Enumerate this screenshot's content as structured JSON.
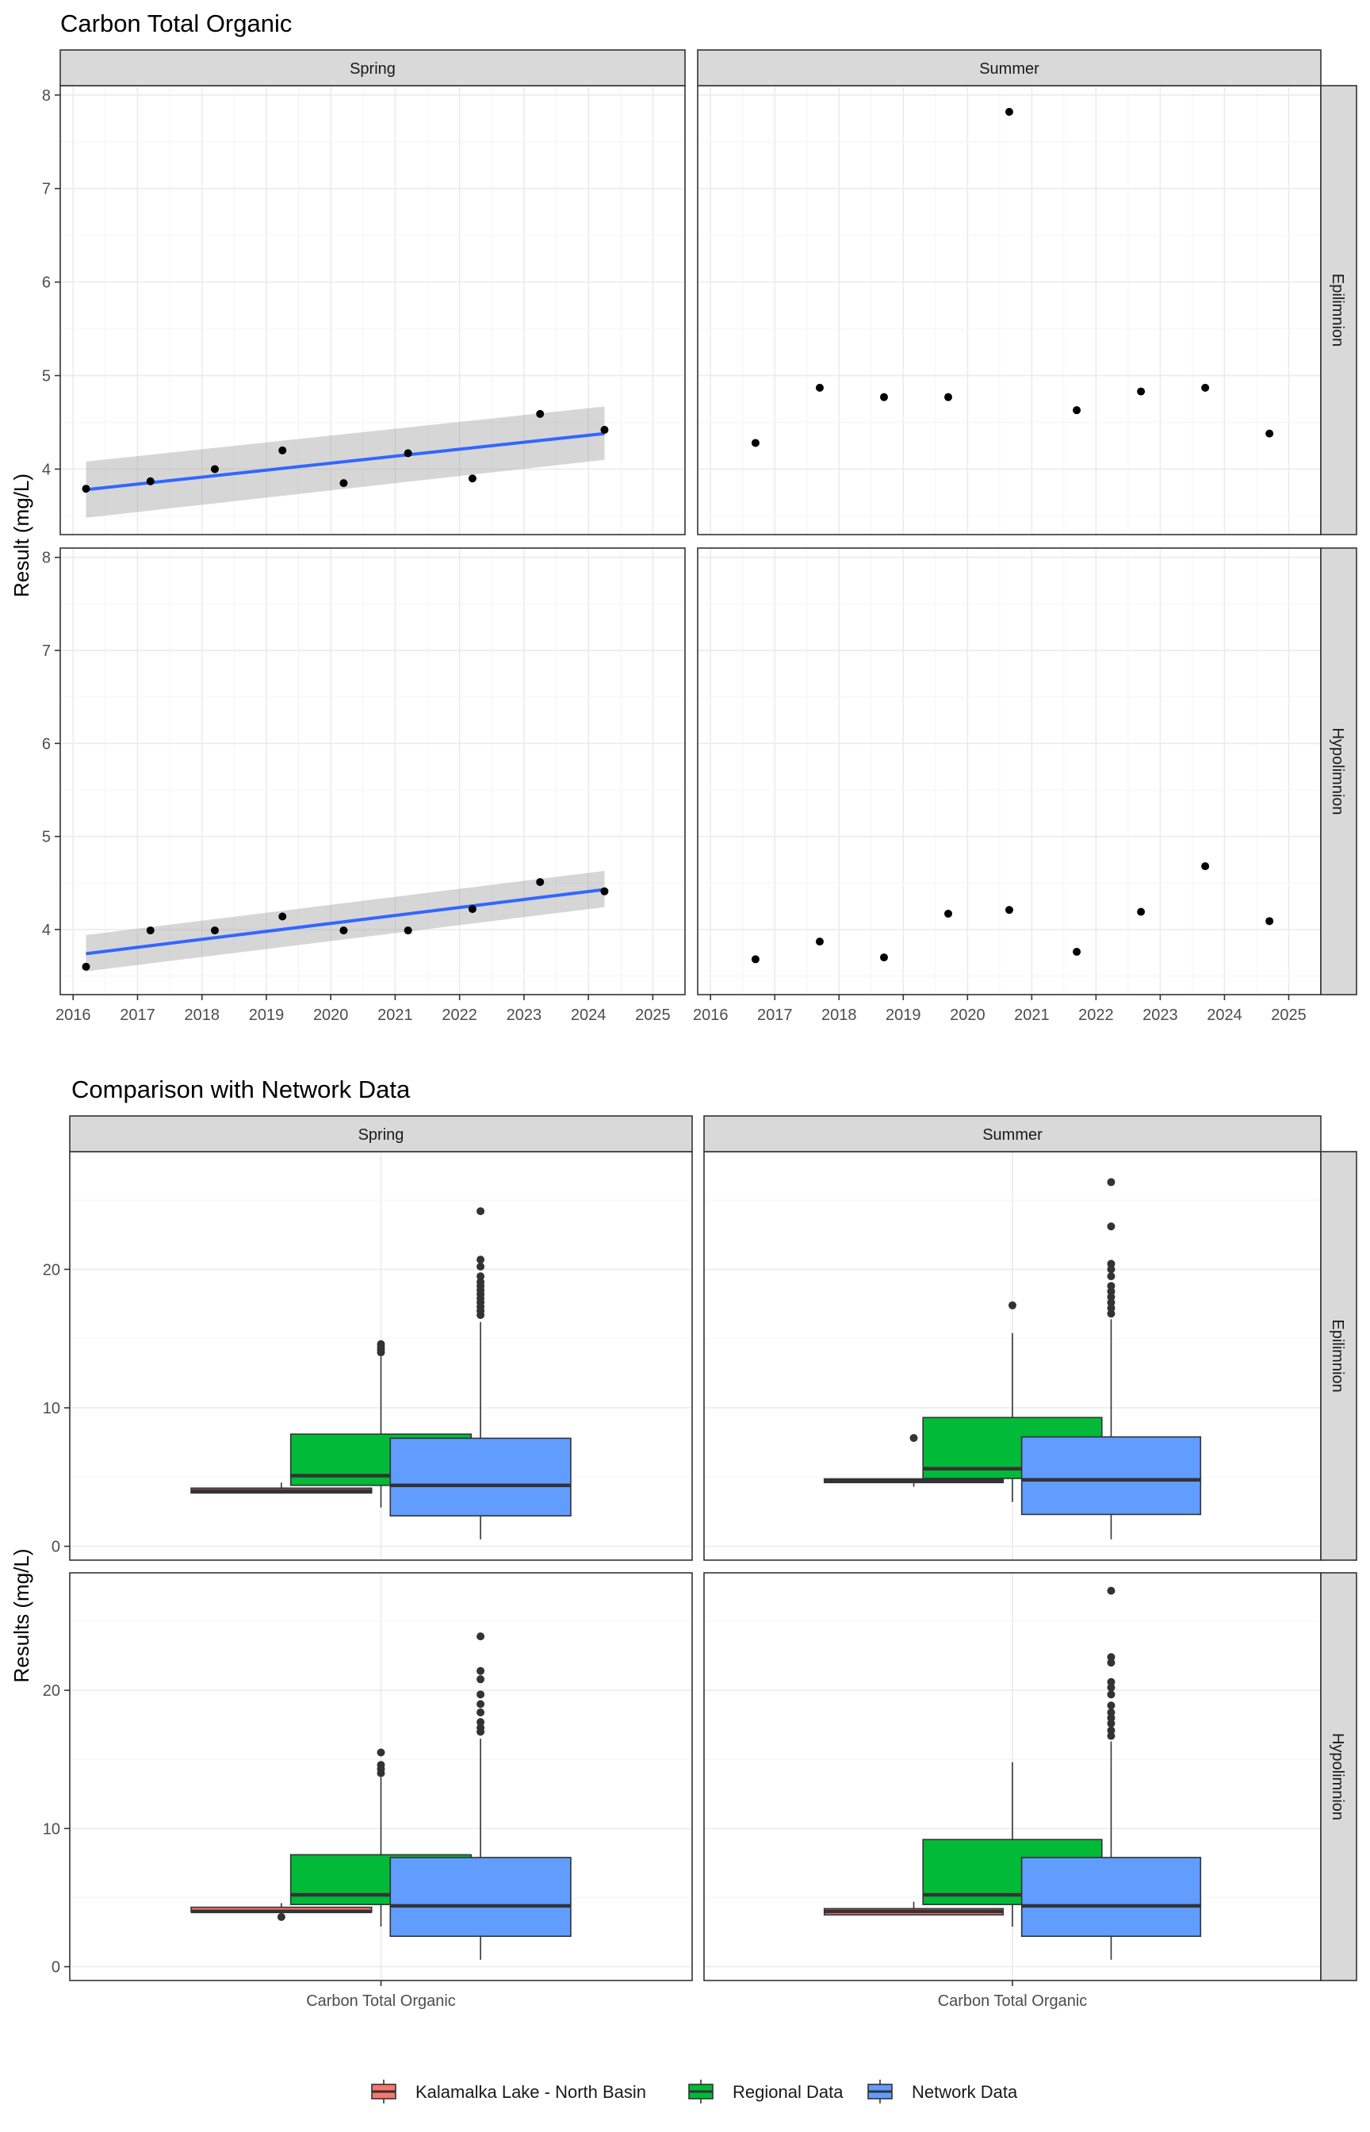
{
  "chart_data": [
    {
      "type": "scatter",
      "title": "Carbon Total Organic",
      "ylabel": "Result (mg/L)",
      "xlabel": "",
      "xlim": [
        2015.8,
        2025.5
      ],
      "ylim": [
        3.3,
        8.1
      ],
      "x_ticks": [
        "2016",
        "2017",
        "2018",
        "2019",
        "2020",
        "2021",
        "2022",
        "2023",
        "2024",
        "2025"
      ],
      "y_ticks": [
        "4",
        "5",
        "6",
        "7",
        "8"
      ],
      "columns": [
        "Spring",
        "Summer"
      ],
      "rows": [
        "Epilimnion",
        "Hypolimnion"
      ],
      "panels": [
        {
          "season": "Spring",
          "layer": "Epilimnion",
          "points": [
            [
              2016.2,
              3.79
            ],
            [
              2017.2,
              3.87
            ],
            [
              2018.2,
              4.0
            ],
            [
              2019.25,
              4.2
            ],
            [
              2020.2,
              3.85
            ],
            [
              2021.2,
              4.17
            ],
            [
              2022.2,
              3.9
            ],
            [
              2023.25,
              4.59
            ],
            [
              2024.25,
              4.42
            ]
          ],
          "trend": {
            "x": [
              2016.2,
              2024.25
            ],
            "y": [
              3.78,
              4.38
            ],
            "ci_low": [
              3.48,
              4.1
            ],
            "ci_high": [
              4.08,
              4.67
            ]
          }
        },
        {
          "season": "Summer",
          "layer": "Epilimnion",
          "points": [
            [
              2016.7,
              4.28
            ],
            [
              2017.7,
              4.87
            ],
            [
              2018.7,
              4.77
            ],
            [
              2019.7,
              4.77
            ],
            [
              2020.65,
              7.82
            ],
            [
              2021.7,
              4.63
            ],
            [
              2022.7,
              4.83
            ],
            [
              2023.7,
              4.87
            ],
            [
              2024.7,
              4.38
            ]
          ]
        },
        {
          "season": "Spring",
          "layer": "Hypolimnion",
          "points": [
            [
              2016.2,
              3.6
            ],
            [
              2017.2,
              3.99
            ],
            [
              2018.2,
              3.99
            ],
            [
              2019.25,
              4.14
            ],
            [
              2020.2,
              3.99
            ],
            [
              2021.2,
              3.99
            ],
            [
              2022.2,
              4.22
            ],
            [
              2023.25,
              4.51
            ],
            [
              2024.25,
              4.41
            ]
          ],
          "trend": {
            "x": [
              2016.2,
              2024.25
            ],
            "y": [
              3.74,
              4.43
            ],
            "ci_low": [
              3.55,
              4.24
            ],
            "ci_high": [
              3.94,
              4.63
            ]
          }
        },
        {
          "season": "Summer",
          "layer": "Hypolimnion",
          "points": [
            [
              2016.7,
              3.68
            ],
            [
              2017.7,
              3.87
            ],
            [
              2018.7,
              3.7
            ],
            [
              2019.7,
              4.17
            ],
            [
              2020.65,
              4.21
            ],
            [
              2021.7,
              3.76
            ],
            [
              2022.7,
              4.19
            ],
            [
              2023.7,
              4.68
            ],
            [
              2024.7,
              4.09
            ]
          ]
        }
      ]
    },
    {
      "type": "box",
      "title": "Comparison with Network Data",
      "ylabel": "Results (mg/L)",
      "ylim": [
        -1.0,
        28.5
      ],
      "y_ticks": [
        "0",
        "10",
        "20"
      ],
      "category": "Carbon Total Organic",
      "columns": [
        "Spring",
        "Summer"
      ],
      "rows": [
        "Epilimnion",
        "Hypolimnion"
      ],
      "legend": [
        {
          "name": "Kalamalka Lake - North Basin",
          "color": "#F8766D"
        },
        {
          "name": "Regional Data",
          "color": "#00BA38"
        },
        {
          "name": "Network Data",
          "color": "#619CFF"
        }
      ],
      "panels": [
        {
          "season": "Spring",
          "layer": "Epilimnion",
          "boxes": [
            {
              "group": "Kalamalka Lake - North Basin",
              "min": 3.8,
              "q1": 3.85,
              "median": 4.0,
              "q3": 4.2,
              "max": 4.6,
              "outliers": []
            },
            {
              "group": "Regional Data",
              "min": 2.8,
              "q1": 4.4,
              "median": 5.1,
              "q3": 8.1,
              "max": 13.7,
              "outliers": [
                14.0,
                14.2,
                14.4,
                14.6
              ]
            },
            {
              "group": "Network Data",
              "min": 0.5,
              "q1": 2.2,
              "median": 4.4,
              "q3": 7.8,
              "max": 16.2,
              "outliers": [
                16.7,
                17.0,
                17.3,
                17.6,
                17.9,
                18.2,
                18.5,
                18.8,
                19.1,
                19.5,
                20.2,
                20.7,
                24.2
              ]
            }
          ]
        },
        {
          "season": "Summer",
          "layer": "Epilimnion",
          "boxes": [
            {
              "group": "Kalamalka Lake - North Basin",
              "min": 4.3,
              "q1": 4.6,
              "median": 4.77,
              "q3": 4.87,
              "max": 4.9,
              "outliers": [
                7.82
              ]
            },
            {
              "group": "Regional Data",
              "min": 3.2,
              "q1": 4.9,
              "median": 5.6,
              "q3": 9.3,
              "max": 15.4,
              "outliers": [
                17.4
              ]
            },
            {
              "group": "Network Data",
              "min": 0.5,
              "q1": 2.3,
              "median": 4.8,
              "q3": 7.9,
              "max": 16.4,
              "outliers": [
                16.8,
                17.2,
                17.6,
                18.0,
                18.4,
                18.8,
                19.5,
                20.0,
                20.4,
                23.1,
                26.3
              ]
            }
          ]
        },
        {
          "season": "Spring",
          "layer": "Hypolimnion",
          "boxes": [
            {
              "group": "Kalamalka Lake - North Basin",
              "min": 3.8,
              "q1": 3.95,
              "median": 4.0,
              "q3": 4.3,
              "max": 4.6,
              "outliers": [
                3.6
              ]
            },
            {
              "group": "Regional Data",
              "min": 2.9,
              "q1": 4.5,
              "median": 5.2,
              "q3": 8.1,
              "max": 13.7,
              "outliers": [
                14.0,
                14.3,
                14.6,
                15.5
              ]
            },
            {
              "group": "Network Data",
              "min": 0.5,
              "q1": 2.2,
              "median": 4.4,
              "q3": 7.9,
              "max": 16.5,
              "outliers": [
                17.0,
                17.3,
                17.7,
                18.4,
                19.0,
                19.7,
                20.8,
                21.4,
                23.9
              ]
            }
          ]
        },
        {
          "season": "Summer",
          "layer": "Hypolimnion",
          "boxes": [
            {
              "group": "Kalamalka Lake - North Basin",
              "min": 3.7,
              "q1": 3.75,
              "median": 4.0,
              "q3": 4.2,
              "max": 4.7,
              "outliers": []
            },
            {
              "group": "Regional Data",
              "min": 2.9,
              "q1": 4.5,
              "median": 5.2,
              "q3": 9.2,
              "max": 14.8,
              "outliers": []
            },
            {
              "group": "Network Data",
              "min": 0.5,
              "q1": 2.2,
              "median": 4.4,
              "q3": 7.9,
              "max": 16.3,
              "outliers": [
                16.7,
                17.1,
                17.6,
                18.0,
                18.4,
                18.9,
                19.7,
                20.2,
                20.6,
                22.0,
                22.4,
                27.2
              ]
            }
          ]
        }
      ]
    }
  ]
}
